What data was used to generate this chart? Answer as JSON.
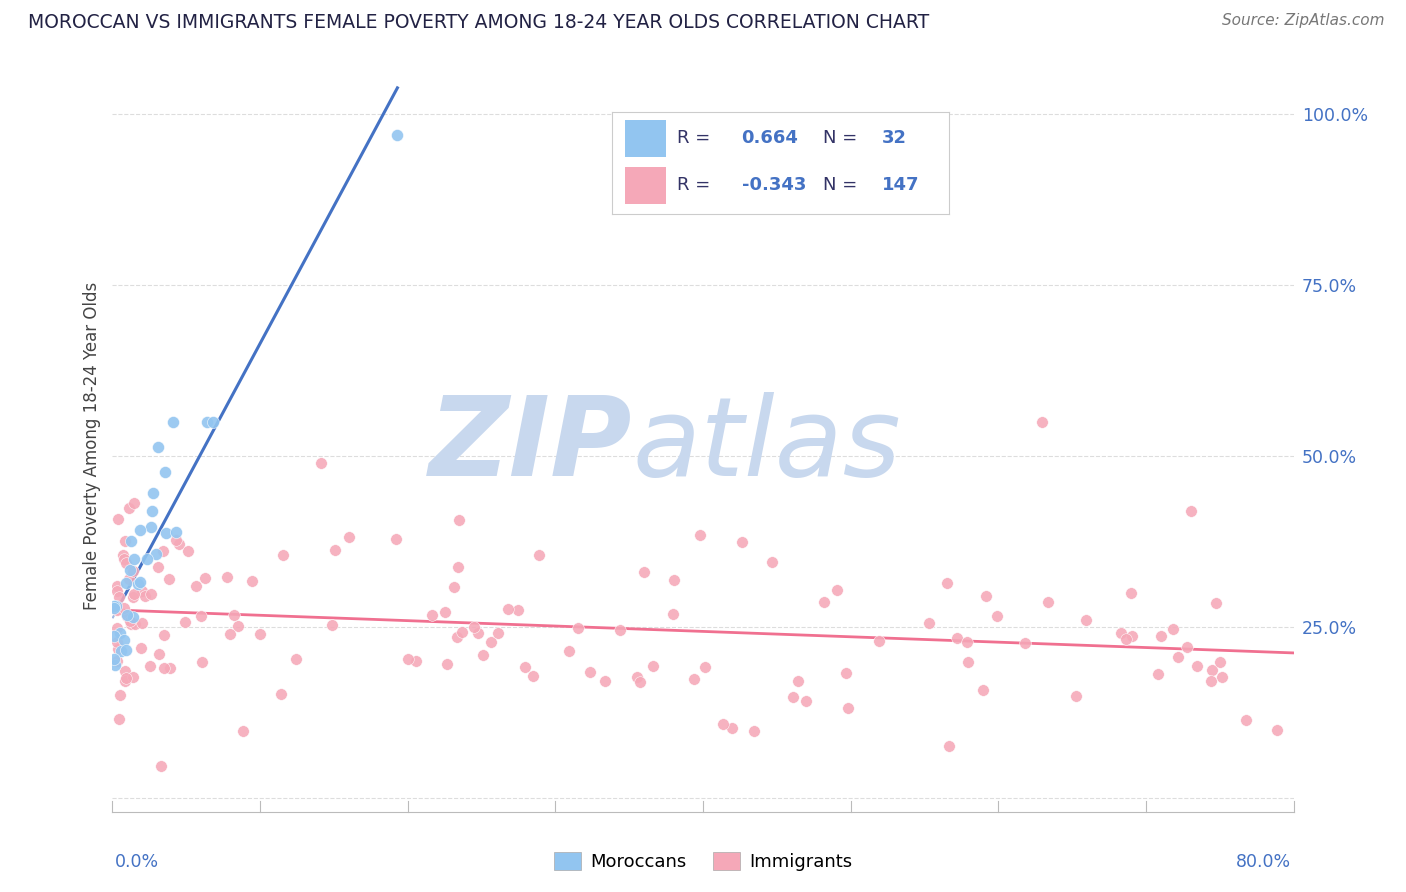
{
  "title": "MOROCCAN VS IMMIGRANTS FEMALE POVERTY AMONG 18-24 YEAR OLDS CORRELATION CHART",
  "source": "Source: ZipAtlas.com",
  "ylabel": "Female Poverty Among 18-24 Year Olds",
  "xlim": [
    0.0,
    0.8
  ],
  "ylim": [
    -0.02,
    1.05
  ],
  "yticks": [
    0.0,
    0.25,
    0.5,
    0.75,
    1.0
  ],
  "ytick_labels": [
    "",
    "25.0%",
    "50.0%",
    "75.0%",
    "100.0%"
  ],
  "moroccan_R": 0.664,
  "moroccan_N": 32,
  "immigrant_R": -0.343,
  "immigrant_N": 147,
  "moroccan_color": "#92C5F0",
  "immigrant_color": "#F5A8B8",
  "moroccan_line_color": "#4472C4",
  "immigrant_line_color": "#F07090",
  "watermark_zip": "ZIP",
  "watermark_atlas": "atlas",
  "watermark_color": "#C8D8EE",
  "background_color": "#FFFFFF",
  "grid_color": "#DDDDDD",
  "title_color": "#222244",
  "source_color": "#777777",
  "axis_label_color": "#4472C4",
  "legend_text_color": "#333366",
  "legend_value_color": "#4472C4"
}
